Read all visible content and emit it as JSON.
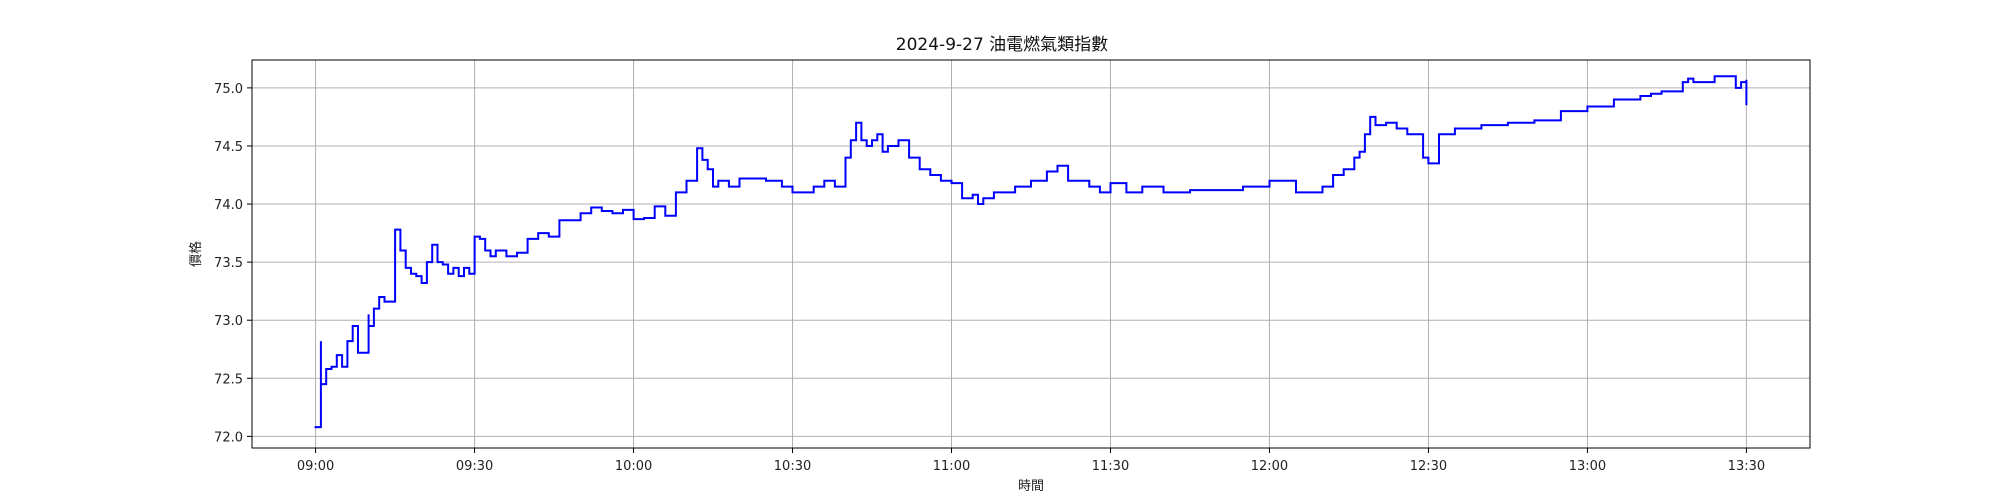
{
  "chart_data": {
    "type": "line",
    "title": "2024-9-27 油電燃氣類指數",
    "xlabel": "時間",
    "ylabel": "價格",
    "xlim": [
      "08:48",
      "13:42"
    ],
    "ylim": [
      71.9,
      75.24
    ],
    "x_ticks": [
      "09:00",
      "09:30",
      "10:00",
      "10:30",
      "11:00",
      "11:30",
      "12:00",
      "12:30",
      "13:00",
      "13:30"
    ],
    "y_ticks": [
      72.0,
      72.5,
      73.0,
      73.5,
      74.0,
      74.5,
      75.0
    ],
    "y_tick_labels": [
      "72.0",
      "72.5",
      "73.0",
      "73.5",
      "74.0",
      "74.5",
      "75.0"
    ],
    "grid": true,
    "line_color": "#0000ff",
    "series": [
      {
        "x": [
          "09:00",
          "09:00",
          "09:01",
          "09:01",
          "09:02",
          "09:02",
          "09:03",
          "09:04",
          "09:05",
          "09:05",
          "09:06",
          "09:07",
          "09:08",
          "09:09",
          "09:10",
          "09:10",
          "09:11",
          "09:12",
          "09:13",
          "09:13",
          "09:14",
          "09:14",
          "09:15",
          "09:15",
          "09:16",
          "09:17",
          "09:18",
          "09:19",
          "09:20",
          "09:21",
          "09:22",
          "09:23",
          "09:24",
          "09:25",
          "09:26",
          "09:27",
          "09:28",
          "09:29",
          "09:30",
          "09:31",
          "09:32",
          "09:33",
          "09:34",
          "09:36",
          "09:38",
          "09:40",
          "09:42",
          "09:44",
          "09:46",
          "09:48",
          "09:50",
          "09:52",
          "09:54",
          "09:56",
          "09:58",
          "10:00",
          "10:02",
          "10:04",
          "10:06",
          "10:08",
          "10:10",
          "10:12",
          "10:13",
          "10:14",
          "10:15",
          "10:16",
          "10:18",
          "10:20",
          "10:22",
          "10:25",
          "10:28",
          "10:30",
          "10:32",
          "10:34",
          "10:36",
          "10:38",
          "10:40",
          "10:41",
          "10:42",
          "10:43",
          "10:44",
          "10:45",
          "10:46",
          "10:47",
          "10:48",
          "10:50",
          "10:52",
          "10:54",
          "10:56",
          "10:58",
          "11:00",
          "11:02",
          "11:04",
          "11:05",
          "11:06",
          "11:08",
          "11:10",
          "11:12",
          "11:15",
          "11:18",
          "11:20",
          "11:22",
          "11:24",
          "11:26",
          "11:28",
          "11:30",
          "11:33",
          "11:36",
          "11:40",
          "11:45",
          "11:50",
          "11:55",
          "12:00",
          "12:05",
          "12:10",
          "12:12",
          "12:14",
          "12:16",
          "12:17",
          "12:18",
          "12:19",
          "12:20",
          "12:22",
          "12:24",
          "12:26",
          "12:28",
          "12:29",
          "12:30",
          "12:32",
          "12:35",
          "12:40",
          "12:45",
          "12:50",
          "12:55",
          "13:00",
          "13:05",
          "13:10",
          "13:12",
          "13:14",
          "13:16",
          "13:18",
          "13:19",
          "13:20",
          "13:22",
          "13:24",
          "13:26",
          "13:28",
          "13:29",
          "13:30",
          "13:30"
        ],
        "y": [
          72.07,
          72.08,
          72.82,
          72.45,
          72.58,
          72.58,
          72.6,
          72.7,
          72.7,
          72.6,
          72.82,
          72.95,
          72.72,
          72.72,
          73.05,
          72.95,
          73.1,
          73.2,
          73.15,
          73.16,
          73.17,
          73.16,
          73.45,
          73.78,
          73.6,
          73.45,
          73.4,
          73.38,
          73.32,
          73.5,
          73.65,
          73.5,
          73.48,
          73.4,
          73.45,
          73.38,
          73.45,
          73.4,
          73.72,
          73.7,
          73.6,
          73.55,
          73.6,
          73.55,
          73.58,
          73.7,
          73.75,
          73.72,
          73.86,
          73.86,
          73.92,
          73.97,
          73.94,
          73.92,
          73.95,
          73.87,
          73.88,
          73.98,
          73.9,
          74.1,
          74.2,
          74.48,
          74.38,
          74.3,
          74.15,
          74.2,
          74.15,
          74.22,
          74.22,
          74.2,
          74.15,
          74.1,
          74.1,
          74.15,
          74.2,
          74.15,
          74.4,
          74.55,
          74.7,
          74.55,
          74.5,
          74.55,
          74.6,
          74.45,
          74.5,
          74.55,
          74.4,
          74.3,
          74.25,
          74.2,
          74.18,
          74.05,
          74.08,
          74.0,
          74.05,
          74.1,
          74.1,
          74.15,
          74.2,
          74.28,
          74.33,
          74.2,
          74.2,
          74.15,
          74.1,
          74.18,
          74.1,
          74.15,
          74.1,
          74.12,
          74.12,
          74.15,
          74.2,
          74.1,
          74.15,
          74.25,
          74.3,
          74.4,
          74.45,
          74.6,
          74.75,
          74.68,
          74.7,
          74.65,
          74.6,
          74.6,
          74.4,
          74.35,
          74.6,
          74.65,
          74.68,
          74.7,
          74.72,
          74.8,
          74.84,
          74.9,
          74.93,
          74.95,
          74.97,
          74.97,
          75.05,
          75.08,
          75.05,
          75.05,
          75.1,
          75.1,
          75.0,
          75.05,
          75.07,
          74.85
        ]
      }
    ]
  }
}
